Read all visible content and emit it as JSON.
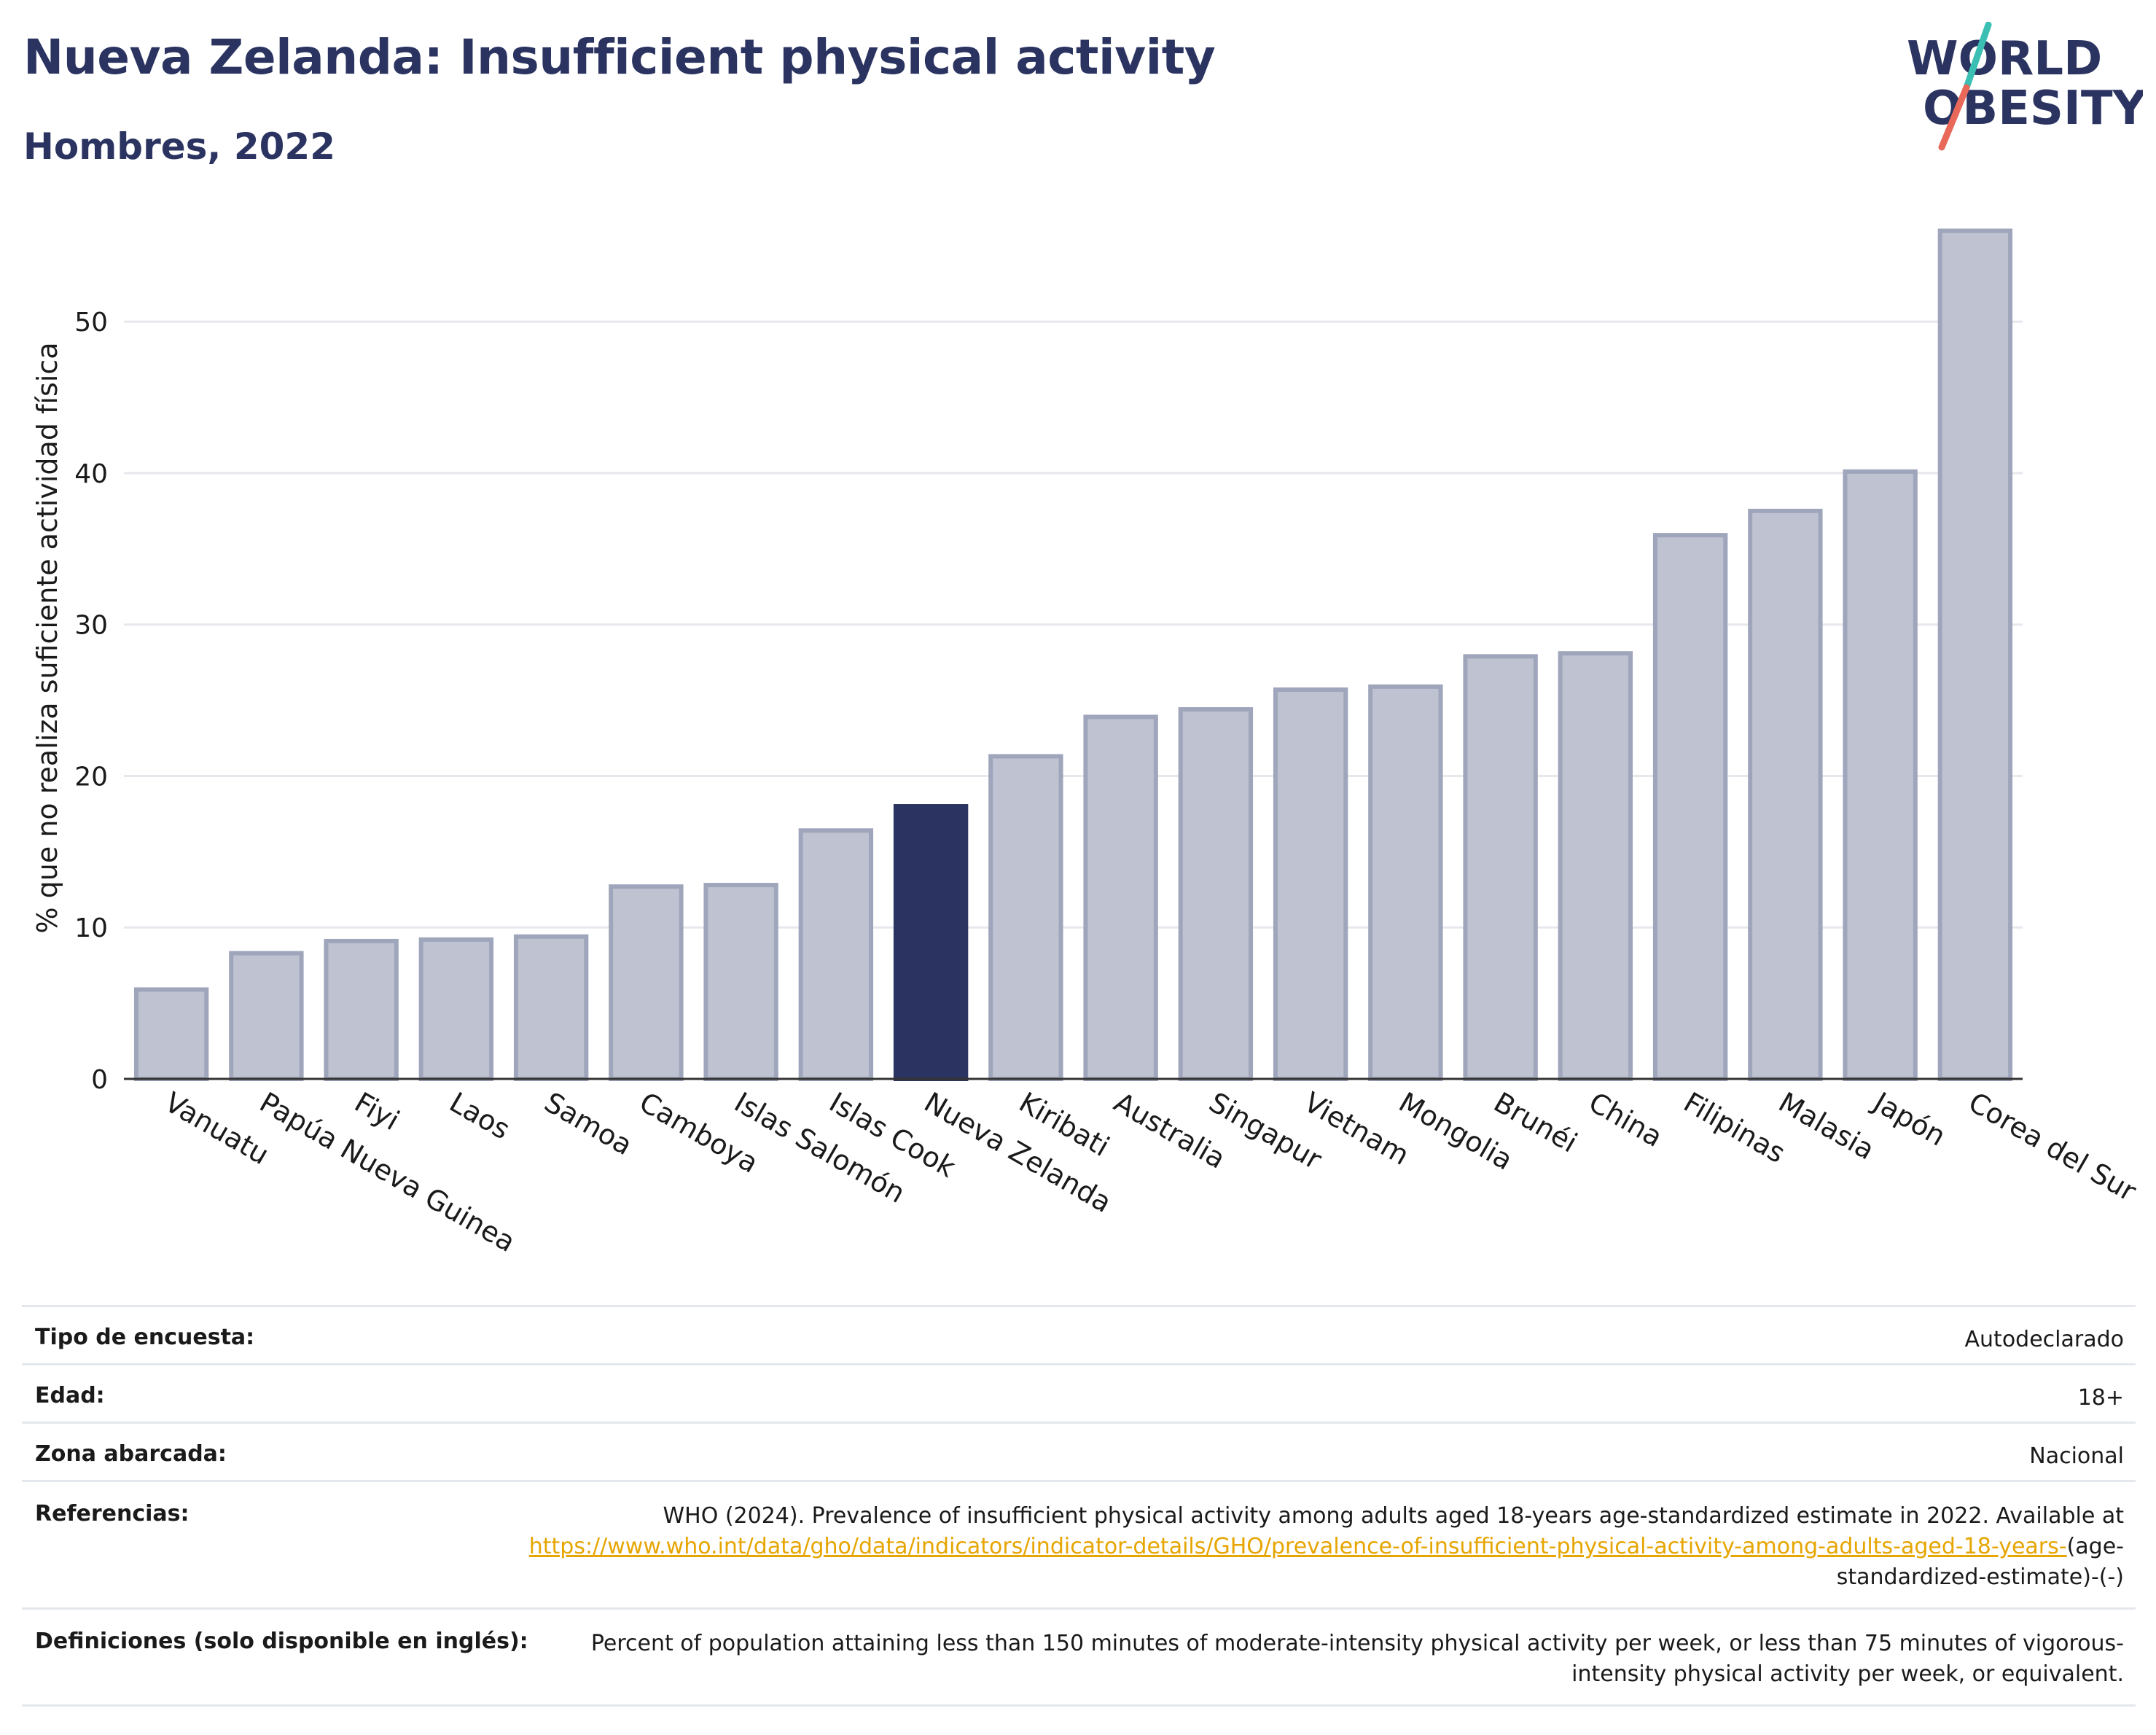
{
  "header": {
    "title": "Nueva Zelanda: Insufficient physical activity",
    "subtitle": "Hombres, 2022"
  },
  "logo": {
    "line1": "WORLD",
    "line2": "OBESITY",
    "colors": {
      "text": "#2b3461",
      "slash_top": "#3bbfb3",
      "slash_bottom": "#e8685a"
    }
  },
  "chart_data": {
    "type": "bar",
    "title": "Nueva Zelanda: Insufficient physical activity",
    "subtitle": "Hombres, 2022",
    "xlabel": "",
    "ylabel": "% que no realiza suficiente actividad física",
    "ylim": [
      0,
      58
    ],
    "yticks": [
      0,
      10,
      20,
      30,
      40,
      50
    ],
    "grid": true,
    "categories": [
      "Vanuatu",
      "Papúa Nueva Guinea",
      "Fiyi",
      "Laos",
      "Samoa",
      "Camboya",
      "Islas Salomón",
      "Islas Cook",
      "Nueva Zelanda",
      "Kiribati",
      "Australia",
      "Singapur",
      "Vietnam",
      "Mongolia",
      "Brunéi",
      "China",
      "Filipinas",
      "Malasia",
      "Japón",
      "Corea del Sur"
    ],
    "values": [
      5.9,
      8.3,
      9.1,
      9.2,
      9.4,
      12.7,
      12.8,
      16.4,
      18.0,
      21.3,
      23.9,
      24.4,
      25.7,
      25.9,
      27.9,
      28.1,
      35.9,
      37.5,
      40.1,
      56.0
    ],
    "highlight": "Nueva Zelanda",
    "colors": {
      "bar": "#bfc3d1",
      "bar_edge": "#9fa5bb",
      "highlight": "#2b3461"
    }
  },
  "table": {
    "rows": [
      {
        "label": "Tipo de encuesta:",
        "value": "Autodeclarado"
      },
      {
        "label": "Edad:",
        "value": "18+"
      },
      {
        "label": "Zona abarcada:",
        "value": "Nacional"
      }
    ],
    "references": {
      "label": "Referencias:",
      "text": "WHO (2024). Prevalence of insufficient physical activity among adults aged 18-years age-standardized estimate in 2022. Available at",
      "link": "https://www.who.int/data/gho/data/indicators/indicator-details/GHO/prevalence-of-insufficient-physical-activity-among-adults-aged-18-years-",
      "suffix": "(age-standardized-estimate)-(-)"
    },
    "definitions": {
      "label": "Definiciones (solo disponible en inglés):",
      "text": "Percent of population attaining less than 150 minutes of moderate-intensity physical activity per week, or less than 75 minutes of vigorous-intensity physical activity per week, or equivalent."
    }
  }
}
